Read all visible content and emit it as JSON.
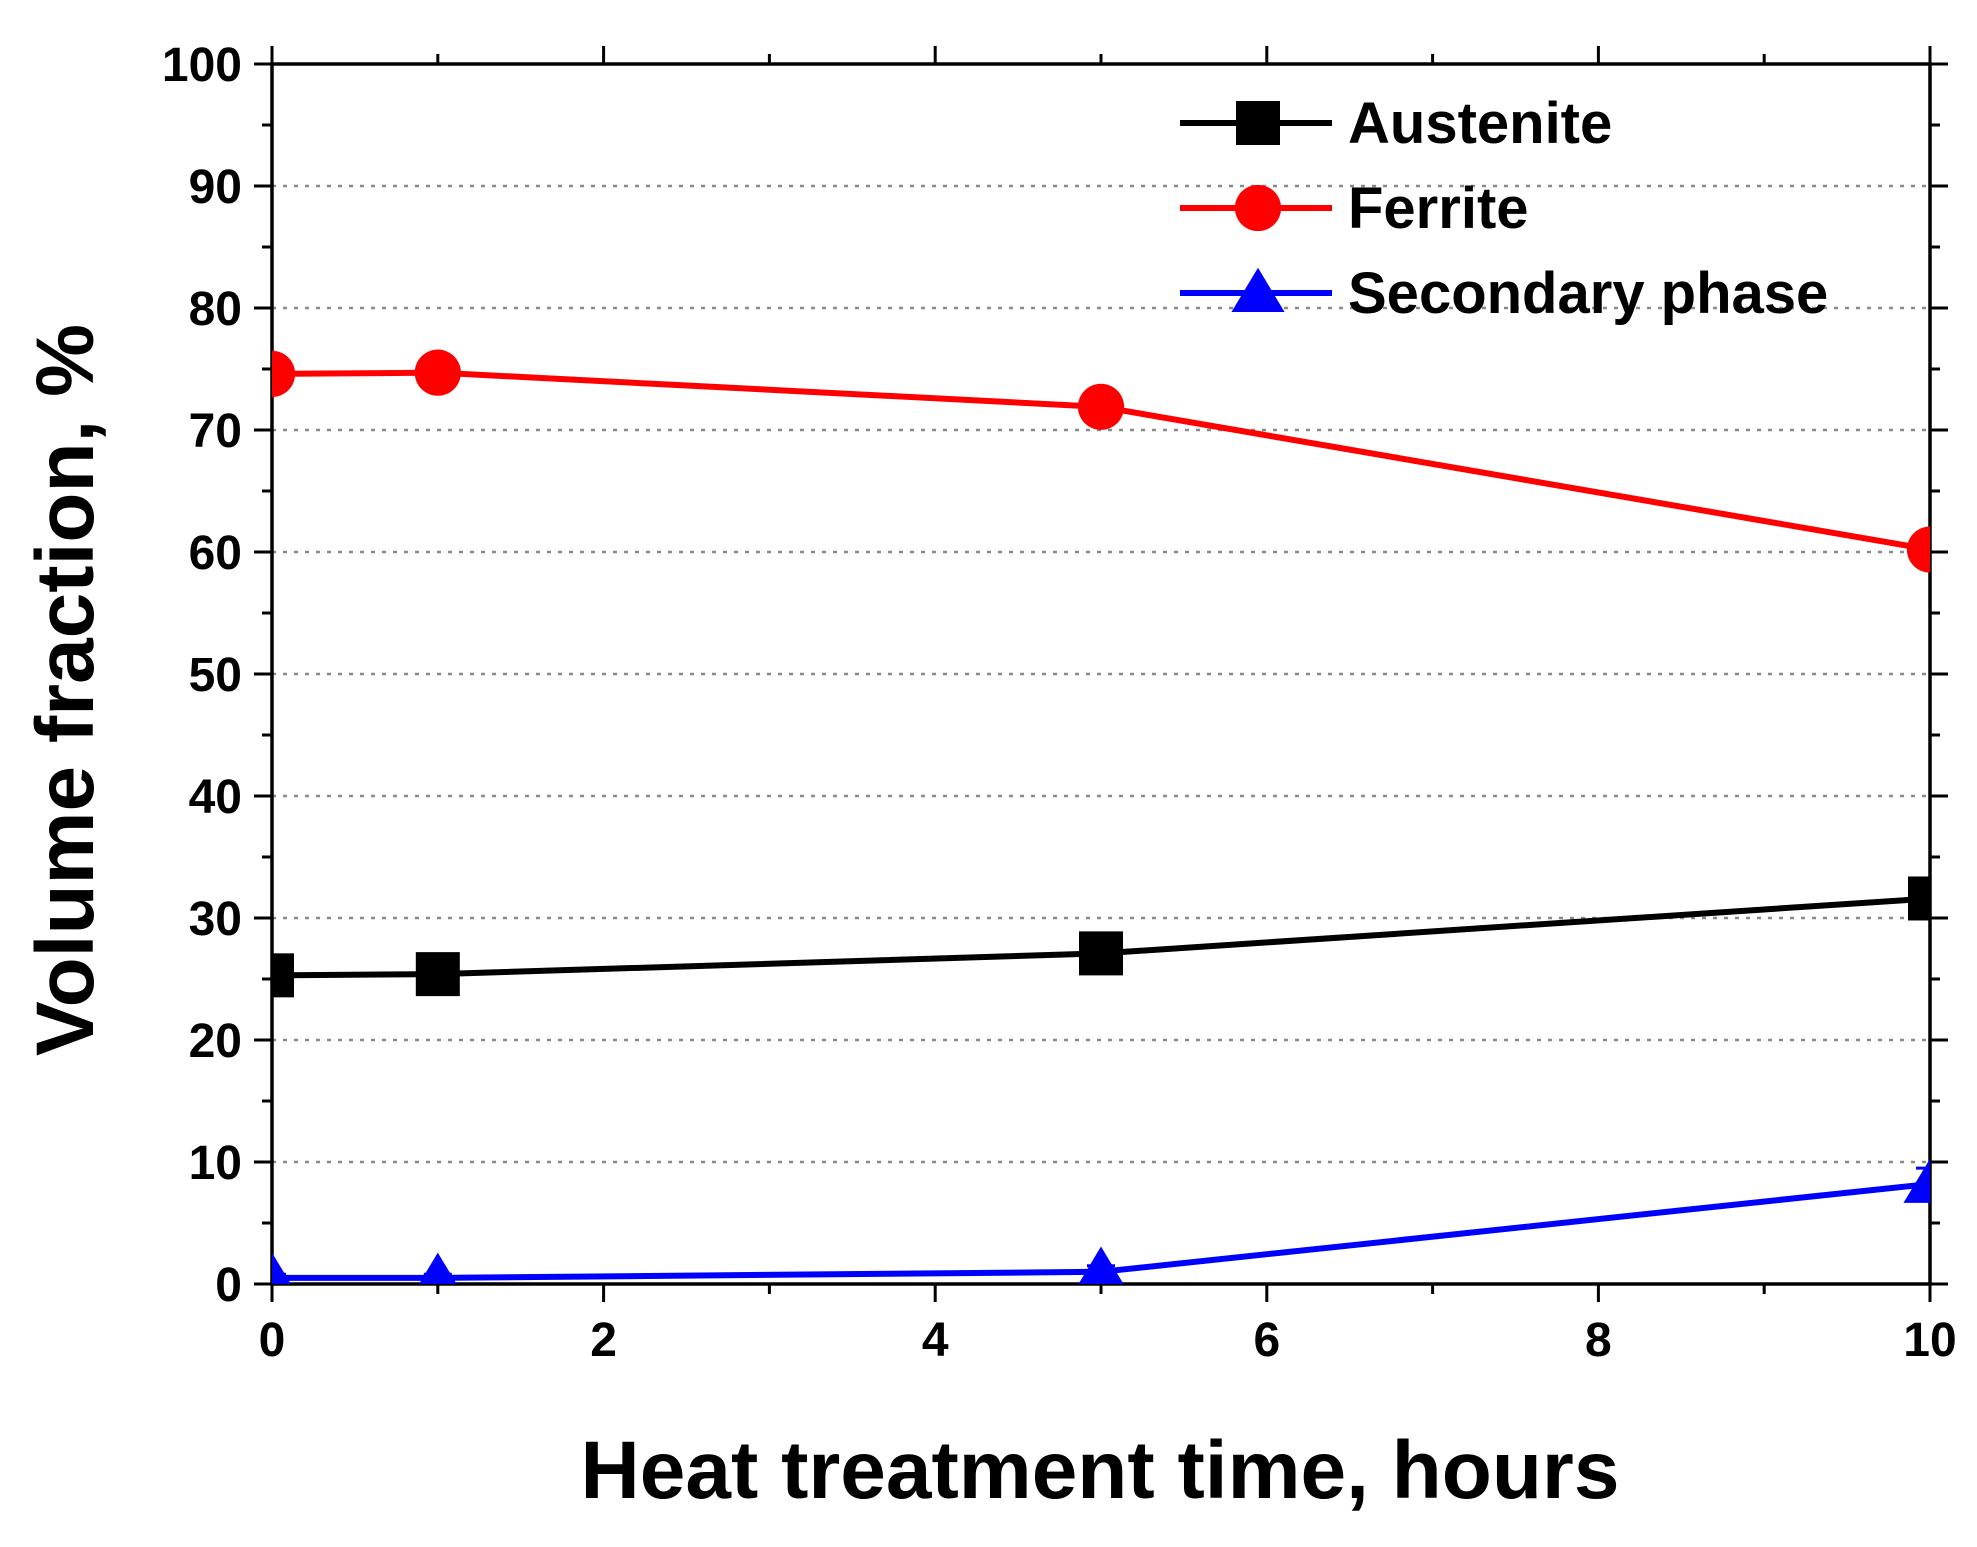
{
  "chart_data": {
    "type": "line",
    "title": "",
    "xlabel": "Heat treatment time, hours",
    "ylabel": "Volume fraction, %",
    "xlim": [
      0,
      10
    ],
    "ylim": [
      0,
      100
    ],
    "x_ticks": [
      0,
      2,
      4,
      6,
      8,
      10
    ],
    "y_ticks": [
      0,
      10,
      20,
      30,
      40,
      50,
      60,
      70,
      80,
      90,
      100
    ],
    "grid": "horizontal-dotted",
    "legend_position": "top-right",
    "x": [
      0,
      1,
      5,
      10
    ],
    "series": [
      {
        "name": "Austenite",
        "marker": "square",
        "color": "#000000",
        "values": [
          25.3,
          25.4,
          27.1,
          31.6
        ],
        "errors": [
          1.3,
          1.2,
          1.4,
          1.2
        ]
      },
      {
        "name": "Ferrite",
        "marker": "circle",
        "color": "#ff0000",
        "values": [
          74.6,
          74.7,
          71.9,
          60.2
        ],
        "errors": [
          1.3,
          1.2,
          1.3,
          1.4
        ]
      },
      {
        "name": "Secondary phase",
        "marker": "triangle",
        "color": "#0000ff",
        "values": [
          0.5,
          0.5,
          1.0,
          8.2
        ],
        "errors": [
          0.3,
          0.3,
          0.5,
          1.3
        ]
      }
    ]
  }
}
